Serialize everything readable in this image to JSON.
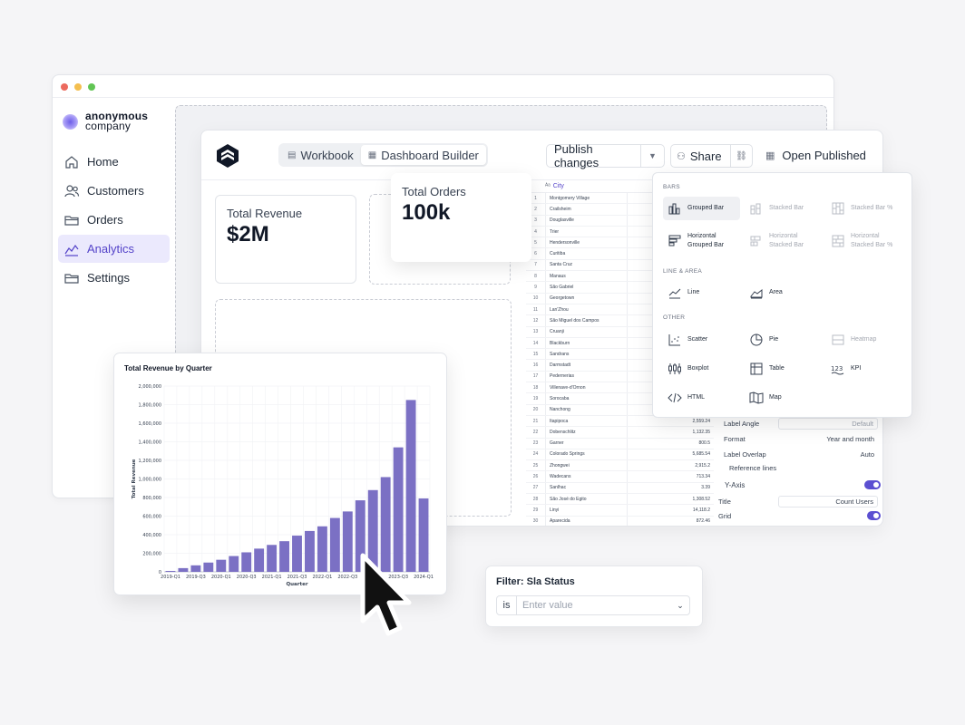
{
  "sidebar": {
    "brand_line1": "anonymous",
    "brand_line2": "company",
    "items": [
      {
        "label": "Home",
        "icon": "home-icon"
      },
      {
        "label": "Customers",
        "icon": "users-icon"
      },
      {
        "label": "Orders",
        "icon": "folder-icon"
      },
      {
        "label": "Analytics",
        "icon": "chart-icon",
        "active": true
      },
      {
        "label": "Settings",
        "icon": "folder-icon"
      }
    ]
  },
  "builder": {
    "tabs": [
      "Workbook",
      "Dashboard Builder"
    ],
    "publish_label": "Publish changes",
    "share_label": "Share",
    "open_published_label": "Open Published"
  },
  "kpis": {
    "revenue_title": "Total Revenue",
    "revenue_value": "$2M",
    "orders_title": "Total Orders",
    "orders_value": "100k"
  },
  "table": {
    "header": "City",
    "rows": [
      {
        "n": "1",
        "city": "Montgomery Village",
        "v": ""
      },
      {
        "n": "2",
        "city": "Crailsheim",
        "v": ""
      },
      {
        "n": "3",
        "city": "Douglasville",
        "v": ""
      },
      {
        "n": "4",
        "city": "Trier",
        "v": ""
      },
      {
        "n": "5",
        "city": "Hendersonville",
        "v": ""
      },
      {
        "n": "6",
        "city": "Curitiba",
        "v": ""
      },
      {
        "n": "7",
        "city": "Santa Cruz",
        "v": ""
      },
      {
        "n": "8",
        "city": "Manaus",
        "v": ""
      },
      {
        "n": "9",
        "city": "São Gabriel",
        "v": ""
      },
      {
        "n": "10",
        "city": "Georgetown",
        "v": ""
      },
      {
        "n": "11",
        "city": "Lan'Zhou",
        "v": ""
      },
      {
        "n": "12",
        "city": "São Miguel dos Campos",
        "v": ""
      },
      {
        "n": "13",
        "city": "Cruanji",
        "v": ""
      },
      {
        "n": "14",
        "city": "Blackburn",
        "v": ""
      },
      {
        "n": "15",
        "city": "Sandrans",
        "v": ""
      },
      {
        "n": "16",
        "city": "Darmstadt",
        "v": ""
      },
      {
        "n": "17",
        "city": "Pedernerias",
        "v": ""
      },
      {
        "n": "18",
        "city": "Villenave-d'Ornon",
        "v": ""
      },
      {
        "n": "19",
        "city": "Sorocaba",
        "v": ""
      },
      {
        "n": "20",
        "city": "Nanchong",
        "v": ""
      },
      {
        "n": "21",
        "city": "Itapipoca",
        "v": "2,559.24"
      },
      {
        "n": "22",
        "city": "Dobenschlitz",
        "v": "1,132.35"
      },
      {
        "n": "23",
        "city": "Garner",
        "v": "800.5"
      },
      {
        "n": "24",
        "city": "Colorado Springs",
        "v": "5,685.54"
      },
      {
        "n": "25",
        "city": "Zhongwei",
        "v": "2,915.2"
      },
      {
        "n": "26",
        "city": "Wadecans",
        "v": "713.34"
      },
      {
        "n": "27",
        "city": "Sanlhac",
        "v": "3.39"
      },
      {
        "n": "28",
        "city": "São José do Egito",
        "v": "1,308.52"
      },
      {
        "n": "29",
        "city": "Linyi",
        "v": "14,118.2"
      },
      {
        "n": "30",
        "city": "Aparecida",
        "v": "872.46"
      }
    ]
  },
  "props": {
    "label_angle": "Label Angle",
    "label_angle_val": "Default",
    "format": "Format",
    "format_val": "Year and month",
    "label_overlap": "Label Overlap",
    "label_overlap_val": "Auto",
    "reference_lines": "Reference lines",
    "yaxis": "Y-Axis",
    "title": "Title",
    "title_val": "Count Users",
    "grid": "Grid"
  },
  "menu": {
    "bars": "BARS",
    "line_area": "LINE & AREA",
    "other": "OTHER",
    "items": [
      {
        "label": "Grouped Bar",
        "icon": "grouped-bar-icon"
      },
      {
        "label": "Stacked Bar",
        "icon": "stacked-bar-icon"
      },
      {
        "label": "Stacked Bar %",
        "icon": "stacked-bar-pct-icon"
      },
      {
        "label": "Horizontal Grouped Bar",
        "icon": "horizontal-grouped-bar-icon"
      },
      {
        "label": "Horizontal Stacked Bar",
        "icon": "horizontal-stacked-bar-icon"
      },
      {
        "label": "Horizontal Stacked Bar %",
        "icon": "horizontal-stacked-bar-pct-icon"
      },
      {
        "label": "Line",
        "icon": "line-chart-icon"
      },
      {
        "label": "Area",
        "icon": "area-chart-icon"
      },
      {
        "label": "Scatter",
        "icon": "scatter-icon"
      },
      {
        "label": "Pie",
        "icon": "pie-icon"
      },
      {
        "label": "Heatmap",
        "icon": "heatmap-icon"
      },
      {
        "label": "Boxplot",
        "icon": "boxplot-icon"
      },
      {
        "label": "Table",
        "icon": "table-icon"
      },
      {
        "label": "KPI",
        "icon": "kpi-icon"
      },
      {
        "label": "HTML",
        "icon": "code-icon"
      },
      {
        "label": "Map",
        "icon": "map-icon"
      }
    ]
  },
  "filter": {
    "title": "Filter: Sla Status",
    "operator": "is",
    "placeholder": "Enter value"
  },
  "colors": {
    "accent": "#5b4fd1",
    "bar": "#7b70c4",
    "active_bg": "#ebe9fd"
  },
  "chart_data": {
    "type": "bar",
    "title": "Total Revenue by Quarter",
    "xlabel": "Quarter",
    "ylabel": "Total Revenue",
    "ylim": [
      0,
      2000000
    ],
    "yticks": [
      0,
      200000,
      400000,
      600000,
      800000,
      1000000,
      1200000,
      1400000,
      1600000,
      1800000,
      2000000
    ],
    "ytick_labels": [
      "0",
      "200,000",
      "400,000",
      "600,000",
      "800,000",
      "1,000,000",
      "1,200,000",
      "1,400,000",
      "1,600,000",
      "1,800,000",
      "2,000,000"
    ],
    "categories": [
      "2019-Q1",
      "2019-Q2",
      "2019-Q3",
      "2019-Q4",
      "2020-Q1",
      "2020-Q2",
      "2020-Q3",
      "2020-Q4",
      "2021-Q1",
      "2021-Q2",
      "2021-Q3",
      "2021-Q4",
      "2022-Q1",
      "2022-Q2",
      "2022-Q3",
      "2022-Q4",
      "2023-Q1",
      "2023-Q2",
      "2023-Q3",
      "2023-Q4",
      "2024-Q1"
    ],
    "xtick_labels": [
      "2019-Q1",
      "",
      "2019-Q3",
      "",
      "2020-Q1",
      "",
      "2020-Q3",
      "",
      "2021-Q1",
      "",
      "2021-Q3",
      "",
      "2022-Q1",
      "",
      "2022-Q3",
      "",
      "",
      "",
      "2023-Q3",
      "",
      "2024-Q1"
    ],
    "values": [
      10000,
      40000,
      70000,
      100000,
      130000,
      170000,
      210000,
      250000,
      290000,
      330000,
      390000,
      440000,
      490000,
      580000,
      650000,
      770000,
      880000,
      1020000,
      1340000,
      1850000,
      790000
    ],
    "grid": true
  }
}
